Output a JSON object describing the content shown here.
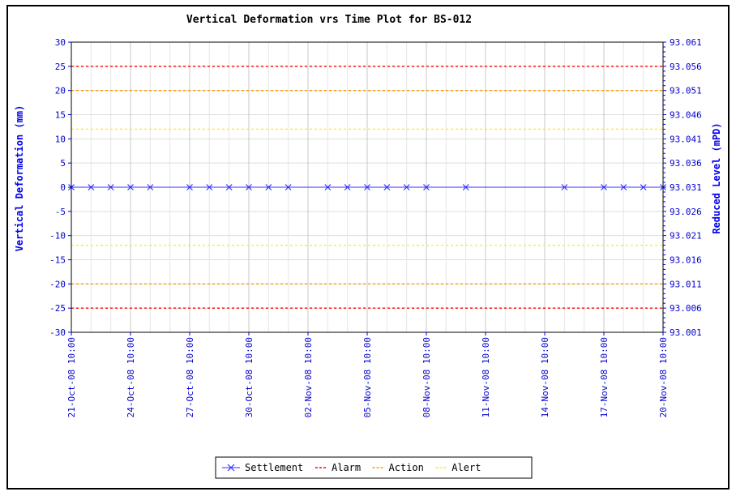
{
  "chart_data": {
    "type": "line",
    "title": "Vertical Deformation vrs Time Plot for BS-012",
    "ylabel_left": "Vertical Deformation (mm)",
    "ylabel_right": "Reduced Level (mPD)",
    "ylim_left": [
      -30,
      30
    ],
    "ylim_right": [
      93.001,
      93.061
    ],
    "yticks_left": [
      30,
      25,
      20,
      15,
      10,
      5,
      0,
      -5,
      -10,
      -15,
      -20,
      -25,
      -30
    ],
    "yticks_right": [
      "93.061",
      "93.056",
      "93.051",
      "93.046",
      "93.041",
      "93.036",
      "93.031",
      "93.026",
      "93.021",
      "93.016",
      "93.011",
      "93.006",
      "93.001"
    ],
    "x_ticks": [
      "21-Oct-08 10:00",
      "24-Oct-08 10:00",
      "27-Oct-08 10:00",
      "30-Oct-08 10:00",
      "02-Nov-08 10:00",
      "05-Nov-08 10:00",
      "08-Nov-08 10:00",
      "11-Nov-08 10:00",
      "14-Nov-08 10:00",
      "17-Nov-08 10:00",
      "20-Nov-08 10:00"
    ],
    "grid": true,
    "legend_position": "bottom",
    "series": [
      {
        "name": "Settlement",
        "color": "#3333ff",
        "marker": "x",
        "points": [
          {
            "x": "21-Oct-08 10:00",
            "y": 0
          },
          {
            "x": "22-Oct-08 10:00",
            "y": 0
          },
          {
            "x": "23-Oct-08 10:00",
            "y": 0
          },
          {
            "x": "24-Oct-08 10:00",
            "y": 0
          },
          {
            "x": "25-Oct-08 10:00",
            "y": 0
          },
          {
            "x": "27-Oct-08 10:00",
            "y": 0
          },
          {
            "x": "28-Oct-08 10:00",
            "y": 0
          },
          {
            "x": "29-Oct-08 10:00",
            "y": 0
          },
          {
            "x": "30-Oct-08 10:00",
            "y": 0
          },
          {
            "x": "31-Oct-08 10:00",
            "y": 0
          },
          {
            "x": "01-Nov-08 10:00",
            "y": 0
          },
          {
            "x": "03-Nov-08 10:00",
            "y": 0
          },
          {
            "x": "04-Nov-08 10:00",
            "y": 0
          },
          {
            "x": "05-Nov-08 10:00",
            "y": 0
          },
          {
            "x": "06-Nov-08 10:00",
            "y": 0
          },
          {
            "x": "07-Nov-08 10:00",
            "y": 0
          },
          {
            "x": "08-Nov-08 10:00",
            "y": 0
          },
          {
            "x": "10-Nov-08 10:00",
            "y": 0
          },
          {
            "x": "15-Nov-08 10:00",
            "y": 0
          },
          {
            "x": "17-Nov-08 10:00",
            "y": 0
          },
          {
            "x": "18-Nov-08 10:00",
            "y": 0
          },
          {
            "x": "19-Nov-08 10:00",
            "y": 0
          },
          {
            "x": "20-Nov-08 10:00",
            "y": 0
          }
        ]
      }
    ],
    "thresholds": [
      {
        "name": "Alarm",
        "color": "#ff0000",
        "values": [
          25,
          -25
        ]
      },
      {
        "name": "Action",
        "color": "#ff9900",
        "values": [
          20,
          -20
        ]
      },
      {
        "name": "Alert",
        "color": "#ffee00",
        "values": [
          12,
          -12
        ]
      }
    ]
  }
}
